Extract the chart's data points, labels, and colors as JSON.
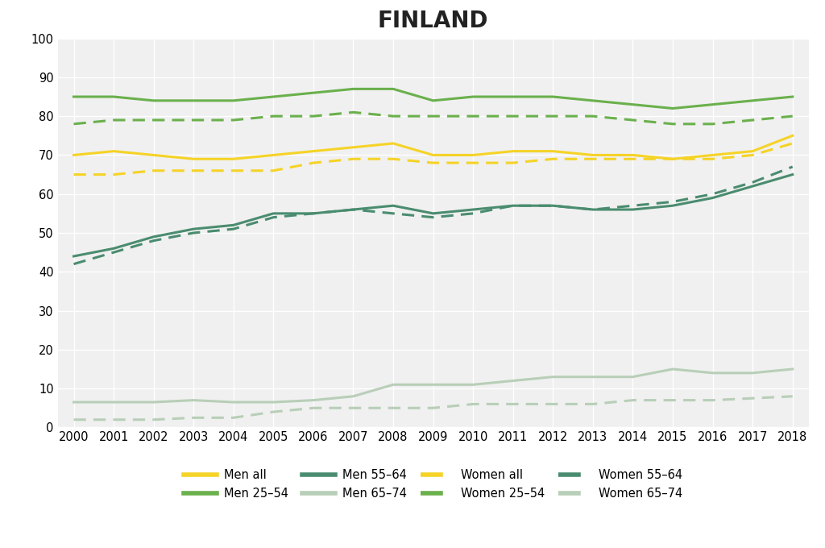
{
  "title": "FINLAND",
  "years": [
    2000,
    2001,
    2002,
    2003,
    2004,
    2005,
    2006,
    2007,
    2008,
    2009,
    2010,
    2011,
    2012,
    2013,
    2014,
    2015,
    2016,
    2017,
    2018
  ],
  "men_all": [
    70,
    71,
    70,
    69,
    69,
    70,
    71,
    72,
    73,
    70,
    70,
    71,
    71,
    70,
    70,
    69,
    70,
    71,
    75
  ],
  "men_2554": [
    85,
    85,
    84,
    84,
    84,
    85,
    86,
    87,
    87,
    84,
    85,
    85,
    85,
    84,
    83,
    82,
    83,
    84,
    85
  ],
  "men_5564": [
    44,
    46,
    49,
    51,
    52,
    55,
    55,
    56,
    57,
    55,
    56,
    57,
    57,
    56,
    56,
    57,
    59,
    62,
    65
  ],
  "men_6574": [
    6.5,
    6.5,
    6.5,
    7,
    6.5,
    6.5,
    7,
    8,
    11,
    11,
    11,
    12,
    13,
    13,
    13,
    15,
    14,
    14,
    15
  ],
  "women_all": [
    65,
    65,
    66,
    66,
    66,
    66,
    68,
    69,
    69,
    68,
    68,
    68,
    69,
    69,
    69,
    69,
    69,
    70,
    73
  ],
  "women_2554": [
    78,
    79,
    79,
    79,
    79,
    80,
    80,
    81,
    80,
    80,
    80,
    80,
    80,
    80,
    79,
    78,
    78,
    79,
    80
  ],
  "women_5564": [
    42,
    45,
    48,
    50,
    51,
    54,
    55,
    56,
    55,
    54,
    55,
    57,
    57,
    56,
    57,
    58,
    60,
    63,
    67
  ],
  "women_6574": [
    2,
    2,
    2,
    2.5,
    2.5,
    4,
    5,
    5,
    5,
    5,
    6,
    6,
    6,
    6,
    7,
    7,
    7,
    7.5,
    8
  ],
  "color_yellow": "#F5D327",
  "color_bright_green": "#6AB04C",
  "color_dark_green": "#4A8C6F",
  "color_light_gray_green": "#B8CEB8",
  "background_color": "#FFFFFF",
  "plot_bg_color": "#F0F0F0",
  "grid_color": "#FFFFFF",
  "ylim": [
    0,
    100
  ],
  "yticks": [
    0,
    10,
    20,
    30,
    40,
    50,
    60,
    70,
    80,
    90,
    100
  ]
}
